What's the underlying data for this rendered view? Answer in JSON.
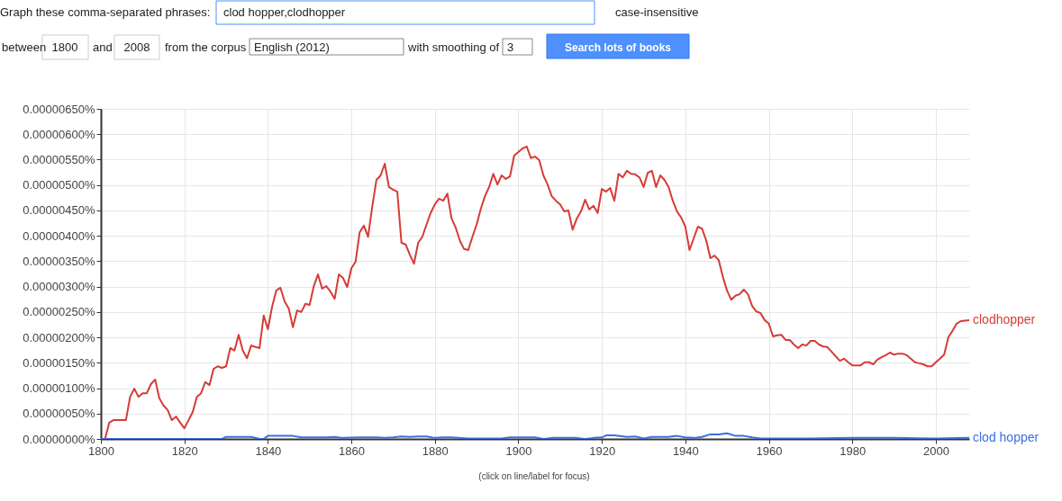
{
  "chart_data": {
    "type": "line",
    "annotations": [
      "Graph these comma-separated phrases:",
      "clod hopper,clodhopper",
      "case-insensitive",
      "between",
      "1800",
      "and",
      "2008",
      "from the corpus",
      "English (2012)",
      "with smoothing of",
      "3",
      "Search lots of books",
      "(click on line/label for focus)"
    ],
    "xlim": [
      1800,
      2008
    ],
    "xticks": [
      1800,
      1820,
      1840,
      1860,
      1880,
      1900,
      1920,
      1940,
      1960,
      1980,
      2000
    ],
    "ylim": [
      0,
      6.5e-06
    ],
    "yticks": [
      {
        "value": 0,
        "label": "0.00000000%"
      },
      {
        "value": 5e-07,
        "label": "0.00000050%"
      },
      {
        "value": 1e-06,
        "label": "0.00000100%"
      },
      {
        "value": 1.5e-06,
        "label": "0.00000150%"
      },
      {
        "value": 2e-06,
        "label": "0.00000200%"
      },
      {
        "value": 2.5e-06,
        "label": "0.00000250%"
      },
      {
        "value": 3e-06,
        "label": "0.00000300%"
      },
      {
        "value": 3.5e-06,
        "label": "0.00000350%"
      },
      {
        "value": 4e-06,
        "label": "0.00000400%"
      },
      {
        "value": 4.5e-06,
        "label": "0.00000450%"
      },
      {
        "value": 5e-06,
        "label": "0.00000500%"
      },
      {
        "value": 5.5e-06,
        "label": "0.00000550%"
      },
      {
        "value": 6e-06,
        "label": "0.00000600%"
      },
      {
        "value": 6.5e-06,
        "label": "0.00000650%"
      }
    ],
    "grid": true,
    "legend": false,
    "line_style": "solid",
    "marker": "none",
    "series": [
      {
        "name": "clodhopper",
        "color": "#d63b36",
        "x": [
          1800,
          1801,
          1802,
          1803,
          1806,
          1807,
          1808,
          1809,
          1810,
          1811,
          1812,
          1813,
          1814,
          1815,
          1816,
          1817,
          1818,
          1819,
          1820,
          1821,
          1822,
          1823,
          1824,
          1825,
          1826,
          1827,
          1828,
          1829,
          1830,
          1831,
          1832,
          1833,
          1834,
          1835,
          1836,
          1837,
          1838,
          1839,
          1840,
          1841,
          1842,
          1843,
          1844,
          1845,
          1846,
          1847,
          1848,
          1849,
          1850,
          1851,
          1852,
          1853,
          1854,
          1855,
          1856,
          1857,
          1858,
          1859,
          1860,
          1861,
          1862,
          1863,
          1864,
          1865,
          1866,
          1867,
          1868,
          1869,
          1870,
          1871,
          1872,
          1873,
          1874,
          1875,
          1876,
          1877,
          1878,
          1879,
          1880,
          1881,
          1882,
          1883,
          1884,
          1885,
          1886,
          1887,
          1888,
          1889,
          1890,
          1891,
          1892,
          1893,
          1894,
          1895,
          1896,
          1897,
          1898,
          1899,
          1900,
          1901,
          1902,
          1903,
          1904,
          1905,
          1906,
          1907,
          1908,
          1909,
          1910,
          1911,
          1912,
          1913,
          1914,
          1915,
          1916,
          1917,
          1918,
          1919,
          1920,
          1921,
          1922,
          1923,
          1924,
          1925,
          1926,
          1927,
          1928,
          1929,
          1930,
          1931,
          1932,
          1933,
          1934,
          1935,
          1936,
          1937,
          1938,
          1939,
          1940,
          1941,
          1942,
          1943,
          1944,
          1945,
          1946,
          1947,
          1948,
          1949,
          1950,
          1951,
          1952,
          1953,
          1954,
          1955,
          1956,
          1957,
          1958,
          1959,
          1960,
          1961,
          1962,
          1963,
          1964,
          1965,
          1966,
          1967,
          1968,
          1969,
          1970,
          1971,
          1972,
          1973,
          1974,
          1975,
          1976,
          1977,
          1978,
          1979,
          1980,
          1981,
          1982,
          1983,
          1984,
          1985,
          1986,
          1987,
          1988,
          1989,
          1990,
          1991,
          1992,
          1993,
          1994,
          1995,
          1996,
          1997,
          1998,
          1999,
          2000,
          2001,
          2002,
          2003,
          2004,
          2005,
          2006,
          2007,
          2008
        ],
        "values": [
          0,
          0,
          3.2e-07,
          3.7e-07,
          3.7e-07,
          8.3e-07,
          9.9e-07,
          8.3e-07,
          9e-07,
          9e-07,
          1.08e-06,
          1.17e-06,
          8e-07,
          6.6e-07,
          5.7e-07,
          3.7e-07,
          4.4e-07,
          3.2e-07,
          2.1e-07,
          3.7e-07,
          5.3e-07,
          8.3e-07,
          9e-07,
          1.12e-06,
          1.06e-06,
          1.38e-06,
          1.43e-06,
          1.4e-06,
          1.43e-06,
          1.79e-06,
          1.74e-06,
          2.05e-06,
          1.74e-06,
          1.59e-06,
          1.84e-06,
          1.81e-06,
          1.79e-06,
          2.43e-06,
          2.16e-06,
          2.6e-06,
          2.92e-06,
          2.98e-06,
          2.71e-06,
          2.57e-06,
          2.2e-06,
          2.53e-06,
          2.5e-06,
          2.66e-06,
          2.64e-06,
          3.01e-06,
          3.24e-06,
          2.96e-06,
          3.01e-06,
          2.9e-06,
          2.76e-06,
          3.24e-06,
          3.17e-06,
          2.99e-06,
          3.36e-06,
          3.49e-06,
          4.07e-06,
          4.2e-06,
          3.98e-06,
          4.57e-06,
          5.1e-06,
          5.19e-06,
          5.42e-06,
          4.96e-06,
          4.91e-06,
          4.87e-06,
          3.86e-06,
          3.83e-06,
          3.63e-06,
          3.45e-06,
          3.86e-06,
          3.98e-06,
          4.22e-06,
          4.45e-06,
          4.62e-06,
          4.73e-06,
          4.69e-06,
          4.83e-06,
          4.34e-06,
          4.16e-06,
          3.9e-06,
          3.74e-06,
          3.72e-06,
          3.98e-06,
          4.22e-06,
          4.53e-06,
          4.78e-06,
          4.96e-06,
          5.22e-06,
          5.01e-06,
          5.19e-06,
          5.12e-06,
          5.17e-06,
          5.58e-06,
          5.65e-06,
          5.72e-06,
          5.76e-06,
          5.53e-06,
          5.56e-06,
          5.49e-06,
          5.19e-06,
          5.01e-06,
          4.78e-06,
          4.69e-06,
          4.62e-06,
          4.48e-06,
          4.5e-06,
          4.12e-06,
          4.34e-06,
          4.48e-06,
          4.71e-06,
          4.52e-06,
          4.59e-06,
          4.45e-06,
          4.92e-06,
          4.87e-06,
          4.94e-06,
          4.69e-06,
          5.22e-06,
          5.15e-06,
          5.28e-06,
          5.22e-06,
          5.21e-06,
          5.15e-06,
          4.96e-06,
          5.24e-06,
          5.28e-06,
          4.96e-06,
          5.19e-06,
          5.1e-06,
          4.96e-06,
          4.69e-06,
          4.48e-06,
          4.36e-06,
          4.18e-06,
          3.72e-06,
          3.95e-06,
          4.18e-06,
          4.14e-06,
          3.91e-06,
          3.56e-06,
          3.61e-06,
          3.52e-06,
          3.19e-06,
          2.92e-06,
          2.74e-06,
          2.82e-06,
          2.85e-06,
          2.94e-06,
          2.85e-06,
          2.62e-06,
          2.51e-06,
          2.48e-06,
          2.34e-06,
          2.27e-06,
          2.02e-06,
          2.04e-06,
          2.05e-06,
          1.95e-06,
          1.95e-06,
          1.86e-06,
          1.79e-06,
          1.86e-06,
          1.84e-06,
          1.93e-06,
          1.93e-06,
          1.86e-06,
          1.82e-06,
          1.81e-06,
          1.72e-06,
          1.63e-06,
          1.54e-06,
          1.58e-06,
          1.51e-06,
          1.45e-06,
          1.45e-06,
          1.45e-06,
          1.51e-06,
          1.51e-06,
          1.47e-06,
          1.56e-06,
          1.61e-06,
          1.65e-06,
          1.7e-06,
          1.66e-06,
          1.68e-06,
          1.68e-06,
          1.65e-06,
          1.58e-06,
          1.51e-06,
          1.49e-06,
          1.47e-06,
          1.43e-06,
          1.43e-06,
          1.51e-06,
          1.58e-06,
          1.66e-06,
          2e-06,
          2.13e-06,
          2.27e-06,
          2.32e-06,
          2.33e-06,
          2.34e-06
        ]
      },
      {
        "name": "clod hopper",
        "color": "#3b6fe0",
        "x": [
          1800,
          1829,
          1830,
          1836,
          1838,
          1839,
          1840,
          1846,
          1848,
          1854,
          1856,
          1858,
          1862,
          1866,
          1868,
          1870,
          1872,
          1874,
          1876,
          1878,
          1880,
          1882,
          1884,
          1888,
          1892,
          1896,
          1898,
          1904,
          1906,
          1908,
          1914,
          1916,
          1918,
          1920,
          1921,
          1923,
          1926,
          1928,
          1930,
          1932,
          1936,
          1938,
          1940,
          1942,
          1944,
          1946,
          1948,
          1950,
          1952,
          1954,
          1956,
          1958,
          1960,
          1970,
          1980,
          1990,
          2000,
          2008
        ],
        "values": [
          0,
          0,
          4e-08,
          4e-08,
          0,
          0,
          6e-08,
          6e-08,
          3e-08,
          3e-08,
          4e-08,
          2e-08,
          3e-08,
          3e-08,
          2e-08,
          3e-08,
          5e-08,
          4e-08,
          5e-08,
          5e-08,
          2e-08,
          3e-08,
          3e-08,
          1e-08,
          1e-08,
          1e-08,
          3e-08,
          3e-08,
          0,
          2e-08,
          2e-08,
          0,
          2e-08,
          3e-08,
          7e-08,
          7e-08,
          4e-08,
          5e-08,
          1e-08,
          4e-08,
          4e-08,
          6e-08,
          3e-08,
          2e-08,
          4e-08,
          9e-08,
          9e-08,
          1.1e-07,
          6e-08,
          6e-08,
          3e-08,
          1e-08,
          1e-08,
          1e-08,
          2e-08,
          2e-08,
          1e-08,
          2e-08
        ]
      }
    ]
  }
}
